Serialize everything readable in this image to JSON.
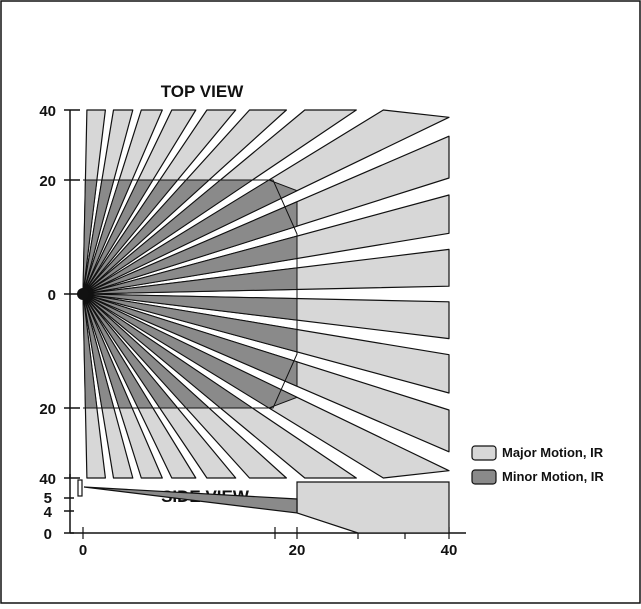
{
  "top_view": {
    "title": "TOP VIEW",
    "y_ticks": [
      "40",
      "20",
      "0",
      "20",
      "40"
    ]
  },
  "side_view": {
    "title": "SIDE VIEW",
    "y_ticks": [
      "5",
      "4",
      "0"
    ],
    "x_ticks": [
      "0",
      "20",
      "40"
    ]
  },
  "legend": {
    "major": {
      "label": "Major Motion, IR",
      "color": "#d7d7d7"
    },
    "minor": {
      "label": "Minor Motion, IR",
      "color": "#8a8a8a"
    }
  },
  "colors": {
    "outline": "#111111",
    "major": "#d7d7d7",
    "minor": "#8a8a8a"
  }
}
